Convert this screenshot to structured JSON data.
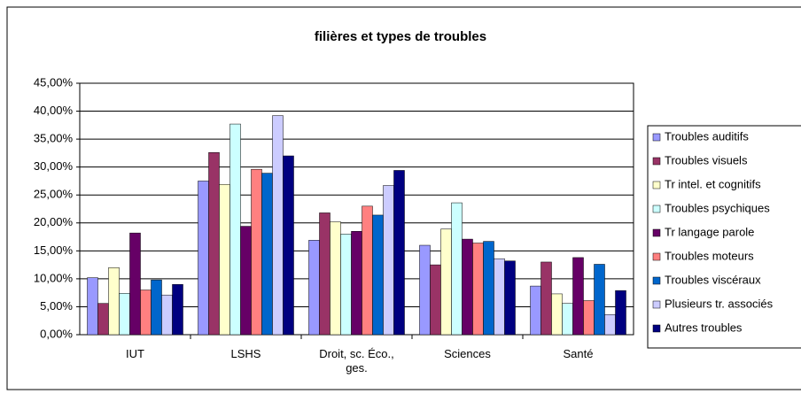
{
  "chart_data": {
    "type": "bar",
    "title": "filières et types de troubles",
    "categories": [
      "IUT",
      "LSHS",
      "Droit, sc. Éco., ges.",
      "Sciences",
      "Santé"
    ],
    "series": [
      {
        "name": "Troubles auditifs",
        "color": "#9999ff",
        "values": [
          10.2,
          27.5,
          16.9,
          16,
          8.7
        ]
      },
      {
        "name": "Troubles visuels",
        "color": "#993366",
        "values": [
          5.6,
          32.6,
          21.8,
          12.5,
          13
        ]
      },
      {
        "name": "Tr intel. et cognitifs",
        "color": "#ffffcc",
        "values": [
          12,
          26.9,
          20.2,
          18.9,
          7.3
        ]
      },
      {
        "name": "Troubles psychiques",
        "color": "#ccffff",
        "values": [
          7.4,
          37.7,
          18,
          23.6,
          5.6
        ]
      },
      {
        "name": "Tr langage  parole",
        "color": "#660066",
        "values": [
          18.2,
          19.4,
          18.5,
          17.1,
          13.8
        ]
      },
      {
        "name": "Troubles moteurs",
        "color": "#ff8080",
        "values": [
          8,
          29.6,
          23,
          16.4,
          6.1
        ]
      },
      {
        "name": "Troubles viscéraux",
        "color": "#0066cc",
        "values": [
          9.8,
          28.9,
          21.4,
          16.7,
          12.6
        ]
      },
      {
        "name": "Plusieurs tr. associés",
        "color": "#ccccff",
        "values": [
          7.1,
          39.2,
          26.7,
          13.6,
          3.6
        ]
      },
      {
        "name": "Autres troubles",
        "color": "#000080",
        "values": [
          9,
          32,
          29.4,
          13.2,
          7.9
        ]
      }
    ],
    "ylim": [
      0,
      45
    ],
    "yticks": [
      {
        "value": 0,
        "label": "0,00%"
      },
      {
        "value": 5,
        "label": "5,00%"
      },
      {
        "value": 10,
        "label": "10,00%"
      },
      {
        "value": 15,
        "label": "15,00%"
      },
      {
        "value": 20,
        "label": "20,00%"
      },
      {
        "value": 25,
        "label": "25,00%"
      },
      {
        "value": 30,
        "label": "30,00%"
      },
      {
        "value": 35,
        "label": "35,00%"
      },
      {
        "value": 40,
        "label": "40,00%"
      },
      {
        "value": 45,
        "label": "45,00%"
      }
    ],
    "grid": true,
    "legend": "right"
  }
}
